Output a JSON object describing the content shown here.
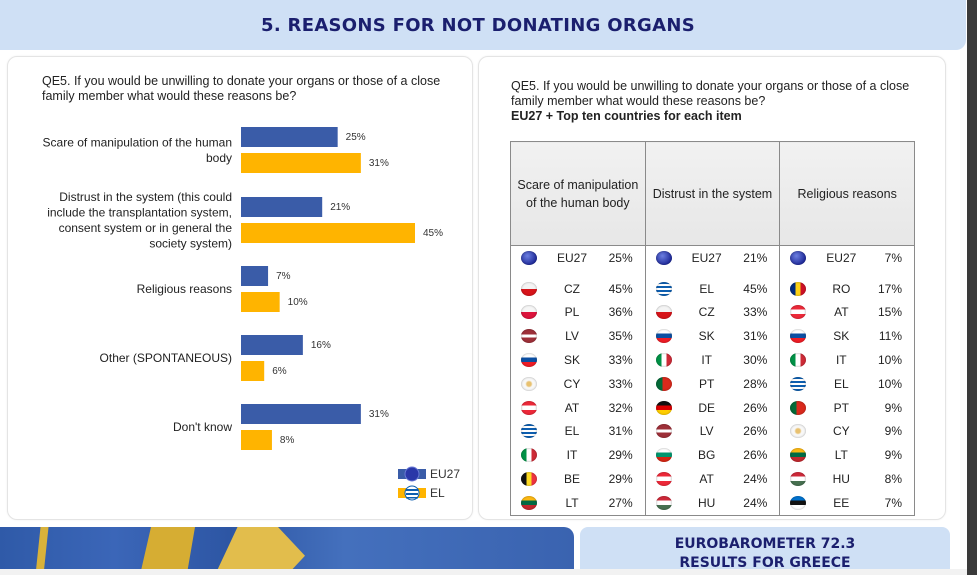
{
  "header": {
    "title": "5. REASONS FOR NOT DONATING ORGANS"
  },
  "left_panel": {
    "question": "QE5. If you would be unwilling to donate your organs or those of a close family member what would these reasons be?"
  },
  "chart_data": {
    "type": "bar",
    "orientation": "horizontal",
    "title": "QE5. If you would be unwilling to donate your organs or those of a close family member what would these reasons be?",
    "xlabel": "",
    "ylabel": "",
    "xlim": [
      0,
      50
    ],
    "grid": false,
    "legend_position": "bottom-right",
    "categories": [
      [
        "Scare of manipulation of the human",
        "body"
      ],
      [
        "Distrust in the system (this could",
        "include the transplantation system,",
        "consent system or in general the",
        "society system)"
      ],
      [
        "Religious reasons"
      ],
      [
        "Other (SPONTANEOUS)"
      ],
      [
        "Don't know"
      ]
    ],
    "series": [
      {
        "name": "EU27",
        "color": "#3a5ca8",
        "values": [
          25,
          21,
          7,
          16,
          31
        ],
        "labels": [
          "25%",
          "21%",
          "7%",
          "16%",
          "31%"
        ]
      },
      {
        "name": "EL",
        "color": "#ffb400",
        "values": [
          31,
          45,
          10,
          6,
          8
        ],
        "labels": [
          "31%",
          "45%",
          "10%",
          "6%",
          "8%"
        ]
      }
    ]
  },
  "right_panel": {
    "question": "QE5. If you would be unwilling to donate your organs or those of a close family member what would these reasons be?",
    "subtitle": "EU27 + Top ten countries for each item",
    "columns": [
      {
        "header": "Scare of manipulation of the human body",
        "rows": [
          {
            "code": "EU27",
            "value": "25%",
            "flag": "eu-flag"
          },
          {
            "code": "CZ",
            "value": "45%",
            "flag": "czech-flag"
          },
          {
            "code": "PL",
            "value": "36%",
            "flag": "poland-flag"
          },
          {
            "code": "LV",
            "value": "35%",
            "flag": "latvia-flag"
          },
          {
            "code": "SK",
            "value": "33%",
            "flag": "slovakia-flag"
          },
          {
            "code": "CY",
            "value": "33%",
            "flag": "cyprus-flag"
          },
          {
            "code": "AT",
            "value": "32%",
            "flag": "austria-flag"
          },
          {
            "code": "EL",
            "value": "31%",
            "flag": "greece-flag"
          },
          {
            "code": "IT",
            "value": "29%",
            "flag": "italy-flag"
          },
          {
            "code": "BE",
            "value": "29%",
            "flag": "belgium-flag"
          },
          {
            "code": "LT",
            "value": "27%",
            "flag": "lithuania-flag"
          }
        ]
      },
      {
        "header": "Distrust in the system",
        "rows": [
          {
            "code": "EU27",
            "value": "21%",
            "flag": "eu-flag"
          },
          {
            "code": "EL",
            "value": "45%",
            "flag": "greece-flag"
          },
          {
            "code": "CZ",
            "value": "33%",
            "flag": "czech-flag"
          },
          {
            "code": "SK",
            "value": "31%",
            "flag": "slovakia-flag"
          },
          {
            "code": "IT",
            "value": "30%",
            "flag": "italy-flag"
          },
          {
            "code": "PT",
            "value": "28%",
            "flag": "portugal-flag"
          },
          {
            "code": "DE",
            "value": "26%",
            "flag": "germany-flag"
          },
          {
            "code": "LV",
            "value": "26%",
            "flag": "latvia-flag"
          },
          {
            "code": "BG",
            "value": "26%",
            "flag": "bulgaria-flag"
          },
          {
            "code": "AT",
            "value": "24%",
            "flag": "austria-flag"
          },
          {
            "code": "HU",
            "value": "24%",
            "flag": "hungary-flag"
          }
        ]
      },
      {
        "header": "Religious reasons",
        "rows": [
          {
            "code": "EU27",
            "value": "7%",
            "flag": "eu-flag"
          },
          {
            "code": "RO",
            "value": "17%",
            "flag": "romania-flag"
          },
          {
            "code": "AT",
            "value": "15%",
            "flag": "austria-flag"
          },
          {
            "code": "SK",
            "value": "11%",
            "flag": "slovakia-flag"
          },
          {
            "code": "IT",
            "value": "10%",
            "flag": "italy-flag"
          },
          {
            "code": "EL",
            "value": "10%",
            "flag": "greece-flag"
          },
          {
            "code": "PT",
            "value": "9%",
            "flag": "portugal-flag"
          },
          {
            "code": "CY",
            "value": "9%",
            "flag": "cyprus-flag"
          },
          {
            "code": "LT",
            "value": "9%",
            "flag": "lithuania-flag"
          },
          {
            "code": "HU",
            "value": "8%",
            "flag": "hungary-flag"
          },
          {
            "code": "EE",
            "value": "7%",
            "flag": "estonia-flag"
          }
        ]
      }
    ]
  },
  "footer": {
    "line1": "EUROBAROMETER 72.3",
    "line2": "RESULTS FOR GREECE"
  }
}
